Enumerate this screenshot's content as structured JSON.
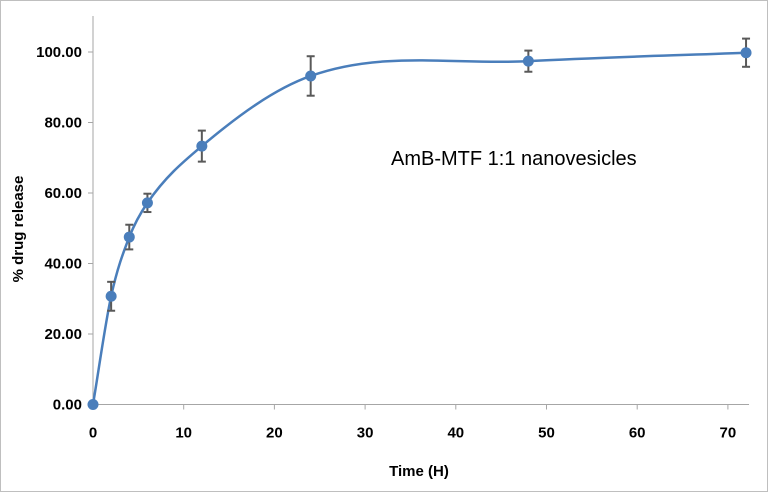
{
  "chart_data": {
    "type": "line",
    "title": "",
    "annotation": "AmB-MTF 1:1  nanovesicles",
    "xlabel": "Time (H)",
    "ylabel": "% drug release",
    "xlim": [
      0,
      72
    ],
    "ylim": [
      0,
      100
    ],
    "xticks": [
      0,
      10,
      20,
      30,
      40,
      50,
      60,
      70
    ],
    "yticks": [
      "0.00",
      "20.00",
      "40.00",
      "60.00",
      "80.00",
      "100.00"
    ],
    "grid": false,
    "smoothed": true,
    "color": "#4a7ebb",
    "errorbar_color": "#595959",
    "series": [
      {
        "x": [
          0,
          2,
          4,
          6,
          12,
          24,
          48,
          72
        ],
        "y": [
          0,
          30.7,
          47.5,
          57.2,
          73.3,
          93.2,
          97.4,
          99.8
        ],
        "error": [
          0,
          4.1,
          3.5,
          2.6,
          4.4,
          5.6,
          3.0,
          4.0
        ]
      }
    ]
  }
}
